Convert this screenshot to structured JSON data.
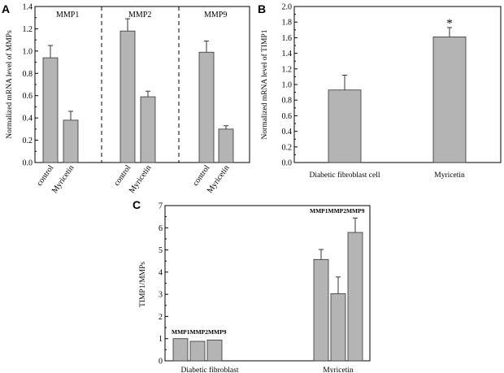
{
  "chart_data": [
    {
      "panel": "A",
      "type": "bar",
      "ylabel": "Normalized mRNA level of MMPs",
      "ylim": [
        0,
        1.4
      ],
      "yticks": [
        "0.0",
        "0.2",
        "0.4",
        "0.6",
        "0.8",
        "1.0",
        "1.2",
        "1.4"
      ],
      "groups": [
        {
          "name": "MMP1",
          "categories": [
            "control",
            "Myricetin"
          ],
          "values": [
            0.94,
            0.38
          ],
          "errors": [
            0.11,
            0.08
          ]
        },
        {
          "name": "MMP2",
          "categories": [
            "control",
            "Myricetin"
          ],
          "values": [
            1.18,
            0.59
          ],
          "errors": [
            0.11,
            0.05
          ]
        },
        {
          "name": "MMP9",
          "categories": [
            "control",
            "Myricetin"
          ],
          "values": [
            0.99,
            0.3
          ],
          "errors": [
            0.1,
            0.03
          ]
        }
      ]
    },
    {
      "panel": "B",
      "type": "bar",
      "ylabel": "Normalized mRNA level of TIMP1",
      "ylim": [
        0,
        2.0
      ],
      "yticks": [
        "0.0",
        "0.2",
        "0.4",
        "0.6",
        "0.8",
        "1.0",
        "1.2",
        "1.4",
        "1.6",
        "1.8",
        "2.0"
      ],
      "categories": [
        "Diabetic fibroblast cell",
        "Myricetin"
      ],
      "values": [
        0.93,
        1.61
      ],
      "errors": [
        0.19,
        0.12
      ],
      "annotations": [
        "",
        "*"
      ]
    },
    {
      "panel": "C",
      "type": "bar",
      "ylabel": "TIMP1/MMPs",
      "ylim": [
        0,
        7
      ],
      "yticks": [
        "0",
        "1",
        "2",
        "3",
        "4",
        "5",
        "6",
        "7"
      ],
      "groups": [
        {
          "name": "Diabetic fibroblast",
          "label": "MMP1MMP2MMP9",
          "values": [
            1.0,
            0.88,
            0.94
          ],
          "errors": [
            0.0,
            0.0,
            0.0
          ]
        },
        {
          "name": "Myricetin",
          "label": "MMP1MMP2MMP9",
          "values": [
            4.57,
            3.03,
            5.79
          ],
          "errors": [
            0.45,
            0.75,
            0.65
          ]
        }
      ]
    }
  ],
  "colors": {
    "bar": "#b4b4b4",
    "stroke": "#333333"
  }
}
